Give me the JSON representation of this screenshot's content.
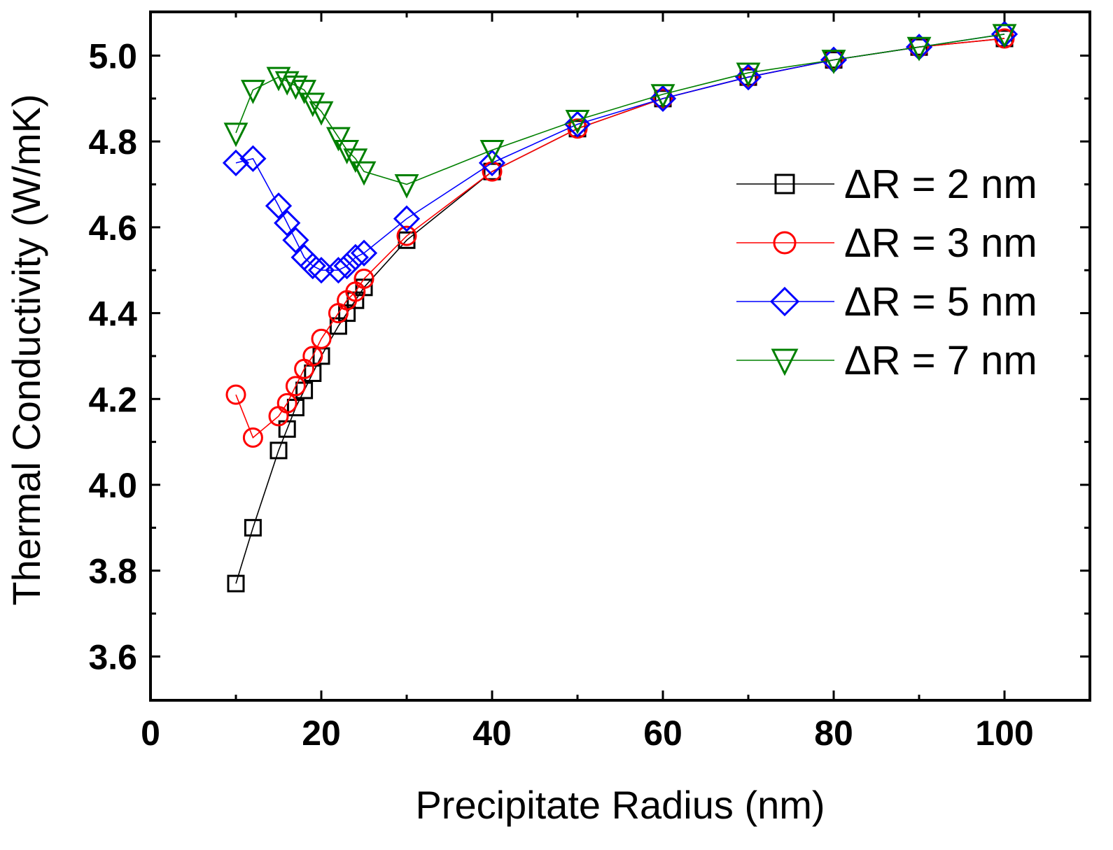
{
  "chart_data": {
    "type": "line",
    "xlabel": "Precipitate Radius (nm)",
    "ylabel": "Thermal Conductivity (W/mK)",
    "xlim": [
      0,
      110
    ],
    "ylim": [
      3.5,
      5.1
    ],
    "xticks": [
      0,
      20,
      40,
      60,
      80,
      100
    ],
    "xtick_labels": [
      "0",
      "20",
      "40",
      "60",
      "80",
      "100"
    ],
    "yticks": [
      3.6,
      3.8,
      4.0,
      4.2,
      4.4,
      4.6,
      4.8,
      5.0
    ],
    "ytick_labels": [
      "3.6",
      "3.8",
      "4.0",
      "4.2",
      "4.4",
      "4.6",
      "4.8",
      "5.0"
    ],
    "grid": false,
    "legend_position": "right",
    "series": [
      {
        "name": "ΔR = 2 nm",
        "marker": "square",
        "color": "#000000",
        "x": [
          10,
          12,
          15,
          16,
          17,
          18,
          19,
          20,
          22,
          23,
          24,
          25,
          30,
          40,
          50,
          60,
          70,
          80,
          90,
          100
        ],
        "y": [
          3.77,
          3.9,
          4.08,
          4.13,
          4.18,
          4.22,
          4.26,
          4.3,
          4.37,
          4.4,
          4.43,
          4.46,
          4.57,
          4.73,
          4.83,
          4.9,
          4.95,
          4.99,
          5.02,
          5.04
        ]
      },
      {
        "name": "ΔR = 3 nm",
        "marker": "circle",
        "color": "#ff0000",
        "x": [
          10,
          12,
          15,
          16,
          17,
          18,
          19,
          20,
          22,
          23,
          24,
          25,
          30,
          40,
          50,
          60,
          70,
          80,
          90,
          100
        ],
        "y": [
          4.21,
          4.11,
          4.16,
          4.19,
          4.23,
          4.27,
          4.3,
          4.34,
          4.4,
          4.43,
          4.45,
          4.48,
          4.58,
          4.73,
          4.83,
          4.9,
          4.95,
          4.99,
          5.02,
          5.04
        ]
      },
      {
        "name": "ΔR = 5 nm",
        "marker": "diamond",
        "color": "#0000ff",
        "x": [
          10,
          12,
          15,
          16,
          17,
          18,
          19,
          20,
          22,
          23,
          24,
          25,
          30,
          40,
          50,
          60,
          70,
          80,
          90,
          100
        ],
        "y": [
          4.75,
          4.76,
          4.65,
          4.61,
          4.57,
          4.53,
          4.51,
          4.5,
          4.5,
          4.51,
          4.53,
          4.54,
          4.62,
          4.75,
          4.84,
          4.9,
          4.95,
          4.99,
          5.02,
          5.05
        ]
      },
      {
        "name": "ΔR = 7 nm",
        "marker": "triangle-down",
        "color": "#008000",
        "x": [
          10,
          12,
          15,
          16,
          17,
          18,
          19,
          20,
          22,
          23,
          24,
          25,
          30,
          40,
          50,
          60,
          70,
          80,
          90,
          100
        ],
        "y": [
          4.82,
          4.92,
          4.95,
          4.94,
          4.93,
          4.92,
          4.89,
          4.87,
          4.81,
          4.78,
          4.76,
          4.73,
          4.7,
          4.78,
          4.85,
          4.91,
          4.96,
          4.99,
          5.02,
          5.05
        ]
      }
    ]
  }
}
